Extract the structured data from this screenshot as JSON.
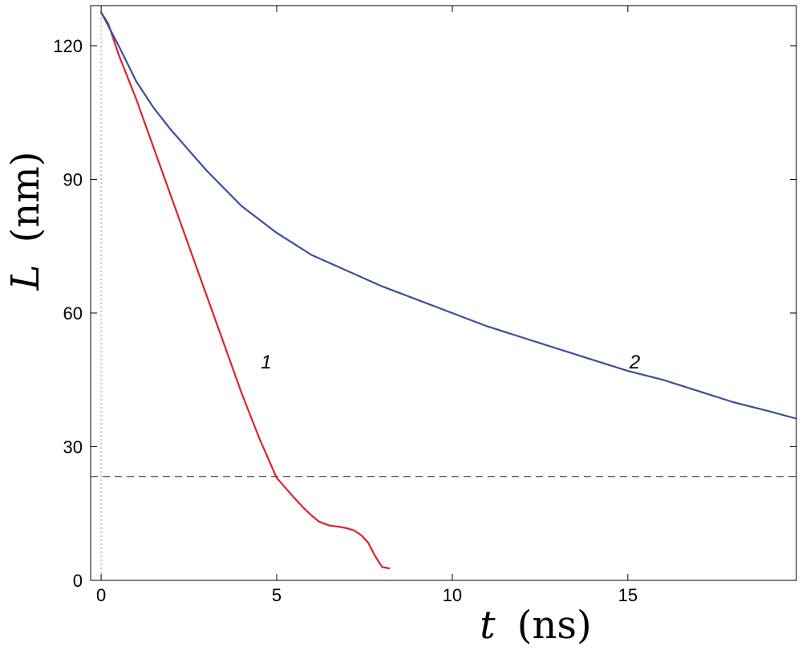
{
  "chart_data": {
    "type": "line",
    "title": "",
    "xlabel_var": "t",
    "xlabel_unit": "(ns)",
    "ylabel_var": "L",
    "ylabel_unit": "(nm)",
    "xlim": [
      -0.3,
      19.8
    ],
    "ylim": [
      0,
      129
    ],
    "xticks": [
      0,
      5,
      10,
      15
    ],
    "yticks": [
      0,
      30,
      60,
      90,
      120
    ],
    "grid": false,
    "legend": "none",
    "reference_lines": {
      "horizontal_dashed_y": 23.3,
      "vertical_dotted_x": 0
    },
    "series": [
      {
        "label": "1",
        "label_pos": [
          4.7,
          49
        ],
        "color": "#e3202a",
        "x": [
          0,
          0.2,
          0.5,
          1.0,
          1.5,
          2.0,
          2.5,
          3.0,
          3.5,
          4.0,
          4.5,
          5.0,
          5.5,
          5.8,
          6.0,
          6.2,
          6.5,
          6.8,
          7.0,
          7.2,
          7.4,
          7.6,
          7.8,
          8.0,
          8.2
        ],
        "y": [
          127.5,
          125,
          118,
          108,
          97,
          86,
          75,
          64,
          53,
          42,
          32,
          23,
          18.5,
          16,
          14.5,
          13.2,
          12.3,
          12,
          11.7,
          11.2,
          10.2,
          8.5,
          5.5,
          3,
          2.7
        ]
      },
      {
        "label": "2",
        "label_pos": [
          15.2,
          49
        ],
        "color": "#3a4fa0",
        "x": [
          0,
          0.5,
          1,
          1.5,
          2,
          3,
          4,
          5,
          6,
          7,
          8,
          9,
          10,
          11,
          12,
          13,
          14,
          15,
          16,
          17,
          18,
          19,
          19.8
        ],
        "y": [
          127.5,
          120,
          112,
          106,
          101,
          92,
          84,
          78,
          73,
          69.5,
          66,
          63,
          60,
          57,
          54.5,
          52,
          49.5,
          47,
          45,
          42.5,
          40,
          38,
          36.3
        ]
      }
    ]
  }
}
